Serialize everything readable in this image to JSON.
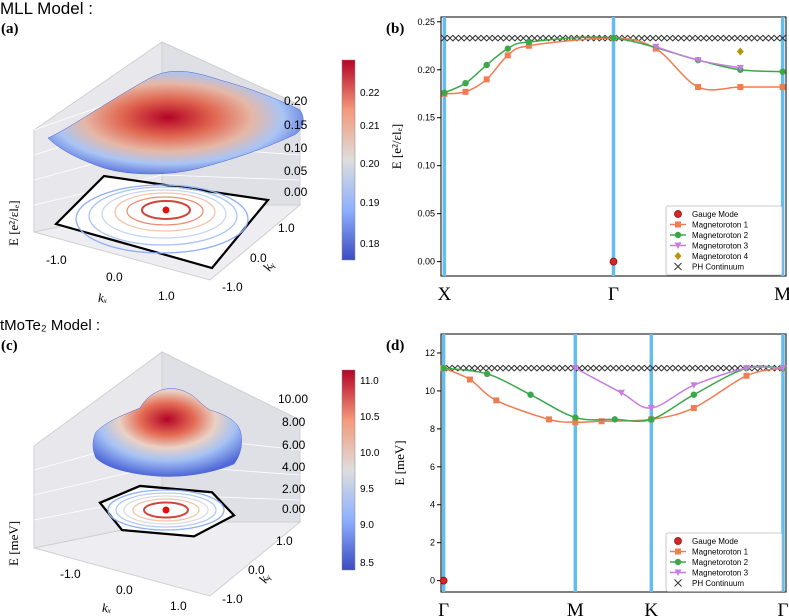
{
  "section_labels": {
    "top": "MLL Model :",
    "bottom": "tMoTe₂ Model :"
  },
  "panel_labels": {
    "a": "(a)",
    "b": "(b)",
    "c": "(c)",
    "d": "(d)"
  },
  "colors": {
    "gauge": "#d62728",
    "magnetoroton1": "#f07c52",
    "magnetoroton2": "#3aa84a",
    "magnetoroton3": "#c77ee0",
    "magnetoroton4": "#b7950b",
    "continuum": "#333333",
    "vline": "#64bdf0"
  },
  "chart_data": [
    {
      "id": "a",
      "type": "surface3d",
      "zlabel": "E [e²/εlₑ]",
      "xlabel": "kₓ",
      "ylabel": "kᵧ",
      "zticks": [
        "0.00",
        "0.05",
        "0.10",
        "0.15",
        "0.20"
      ],
      "xticks": [
        "-1.0",
        "0.0",
        "1.0"
      ],
      "yticks": [
        "-1.0",
        "0.0",
        "1.0"
      ],
      "colorbar": {
        "ticks": [
          "0.18",
          "0.19",
          "0.20",
          "0.21",
          "0.22"
        ],
        "range": [
          0.175,
          0.228
        ]
      }
    },
    {
      "id": "b",
      "type": "line",
      "ylabel": "E [e²/εlₑ]",
      "ylim": [
        -0.015,
        0.255
      ],
      "yticks": [
        "0.00",
        "0.05",
        "0.10",
        "0.15",
        "0.20",
        "0.25"
      ],
      "x_tick_labels": [
        "X",
        "Γ",
        "M"
      ],
      "x_tick_positions": [
        0,
        1,
        2
      ],
      "xlim": [
        -0.02,
        2.02
      ],
      "legend": [
        "Gauge Mode",
        "Magnetoroton 1",
        "Magnetoroton 2",
        "Magnetoroton 3",
        "Magnetoroton 4",
        "PH Continuum"
      ],
      "gauge": {
        "x": [
          1.0
        ],
        "y": [
          0.0
        ]
      },
      "continuum": {
        "y": 0.233,
        "x_start": 0.0,
        "x_end": 2.0
      },
      "series": [
        {
          "key": "magnetoroton1",
          "x": [
            0.0,
            0.125,
            0.25,
            0.375,
            0.5,
            1.0,
            1.25,
            1.5,
            1.75,
            2.0
          ],
          "y": [
            0.175,
            0.177,
            0.19,
            0.215,
            0.225,
            0.233,
            0.222,
            0.182,
            0.182,
            0.182
          ]
        },
        {
          "key": "magnetoroton2",
          "x": [
            0.0,
            0.125,
            0.25,
            0.375,
            0.5,
            1.0,
            1.5,
            1.75,
            2.0
          ],
          "y": [
            0.176,
            0.186,
            0.205,
            0.222,
            0.229,
            0.233,
            0.21,
            0.2,
            0.198
          ]
        },
        {
          "key": "magnetoroton3",
          "x": [
            1.25,
            1.5,
            1.75
          ],
          "y": [
            0.224,
            0.21,
            0.202
          ]
        },
        {
          "key": "magnetoroton4",
          "x": [
            1.75
          ],
          "y": [
            0.219
          ]
        }
      ]
    },
    {
      "id": "c",
      "type": "surface3d",
      "zlabel": "E [meV]",
      "xlabel": "kₓ",
      "ylabel": "kᵧ",
      "zticks": [
        "0.00",
        "2.00",
        "4.00",
        "6.00",
        "8.00",
        "10.00"
      ],
      "xticks": [
        "-1.0",
        "0.0",
        "1.0"
      ],
      "yticks": [
        "-1.0",
        "0.0",
        "1.0"
      ],
      "colorbar": {
        "ticks": [
          "8.5",
          "9.0",
          "9.5",
          "10.0",
          "10.5",
          "11.0"
        ],
        "range": [
          8.3,
          11.2
        ]
      }
    },
    {
      "id": "d",
      "type": "line",
      "ylabel": "E [meV]",
      "ylim": [
        -0.6,
        13.0
      ],
      "yticks": [
        "0",
        "2",
        "4",
        "6",
        "8",
        "10",
        "12"
      ],
      "x_tick_labels": [
        "Γ",
        "M",
        "K",
        "Γ"
      ],
      "x_tick_positions": [
        0,
        1,
        1.577,
        2.577
      ],
      "xlim": [
        -0.02,
        2.6
      ],
      "legend": [
        "Gauge Mode",
        "Magnetoroton 1",
        "Magnetoroton 2",
        "Magnetoroton 3",
        "PH Continuum"
      ],
      "gauge": {
        "x": [
          0.0
        ],
        "y": [
          0.0
        ]
      },
      "continuum": {
        "y": 11.2,
        "x_start": 0.0,
        "x_end": 2.577
      },
      "series": [
        {
          "key": "magnetoroton1",
          "x": [
            0.0,
            0.2,
            0.4,
            0.8,
            1.0,
            1.2,
            1.577,
            1.9,
            2.3,
            2.577
          ],
          "y": [
            11.2,
            10.6,
            9.5,
            8.5,
            8.35,
            8.4,
            8.5,
            9.1,
            10.8,
            11.2
          ]
        },
        {
          "key": "magnetoroton2",
          "x": [
            0.0,
            0.33,
            0.66,
            1.0,
            1.3,
            1.577,
            1.9,
            2.3,
            2.577
          ],
          "y": [
            11.2,
            10.9,
            9.8,
            8.6,
            8.5,
            8.5,
            9.8,
            11.2,
            11.2
          ]
        },
        {
          "key": "magnetoroton3",
          "x": [
            1.0,
            1.35,
            1.577,
            1.9,
            2.3,
            2.577
          ],
          "y": [
            11.2,
            9.9,
            9.1,
            10.3,
            11.2,
            11.2
          ]
        }
      ]
    }
  ]
}
